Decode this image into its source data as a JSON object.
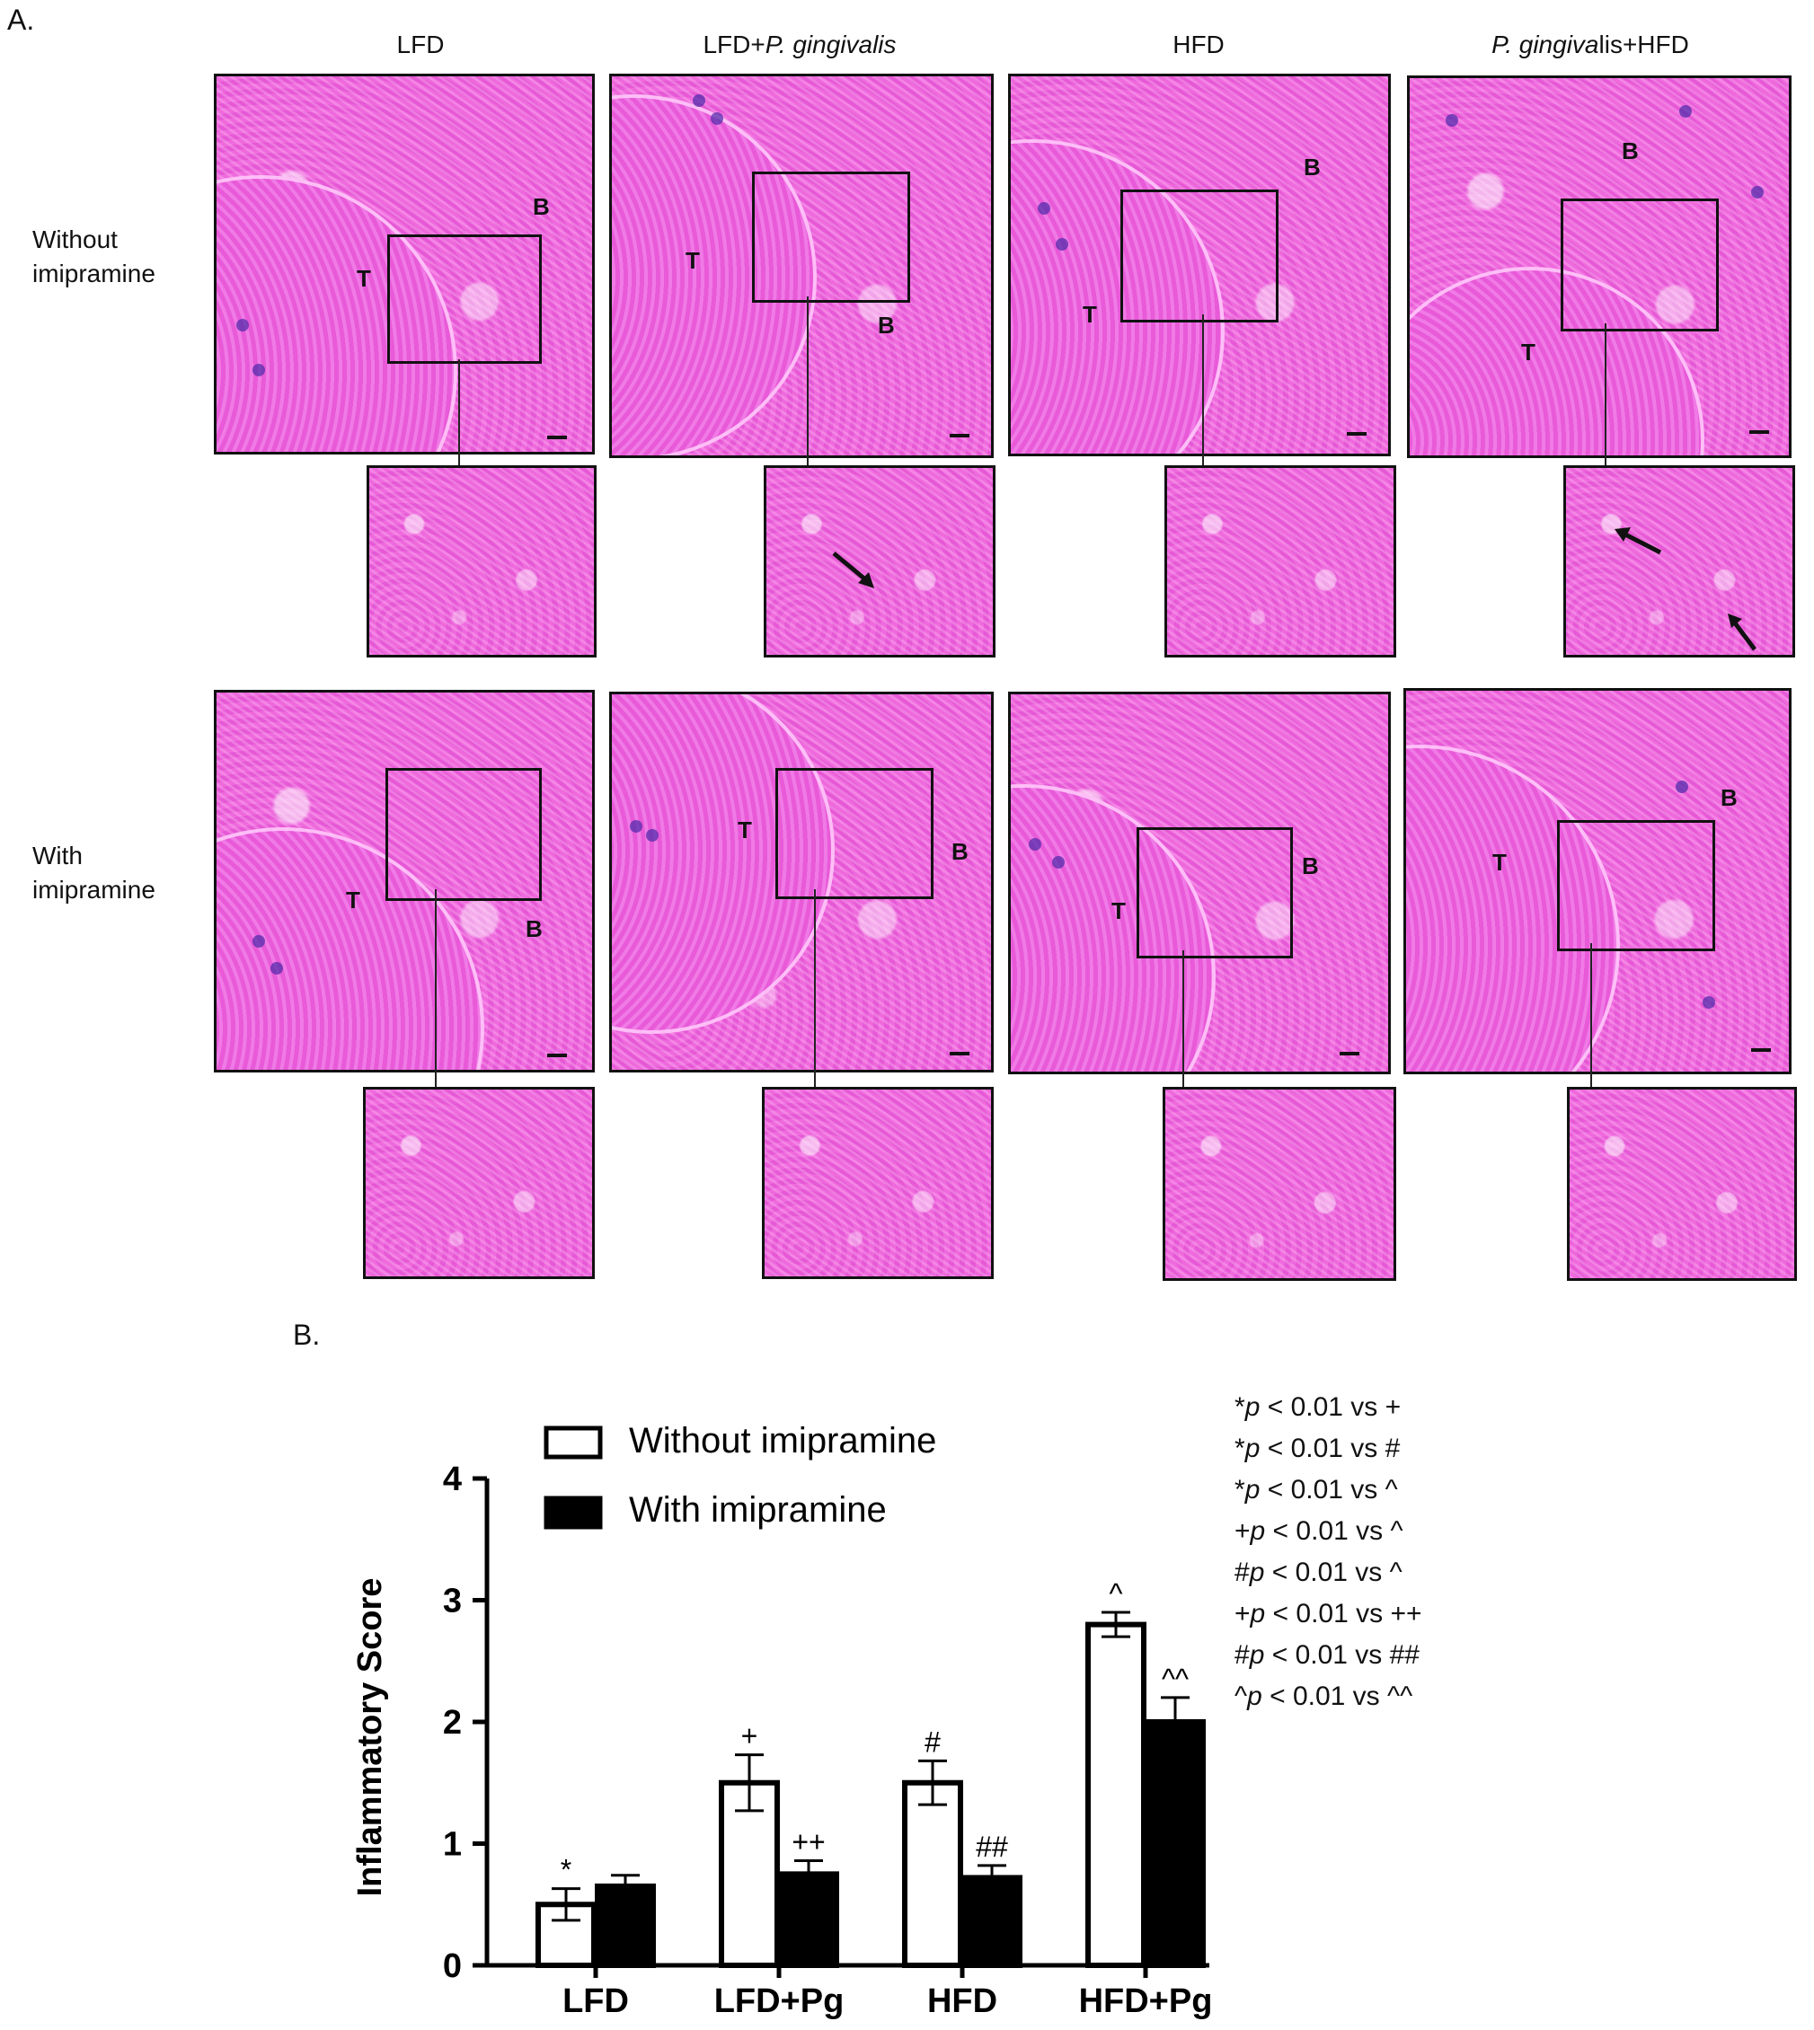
{
  "figure": {
    "panel_a_label": "A.",
    "panel_b_label": "B.",
    "column_titles": [
      {
        "plain_before": "LFD",
        "italic": "",
        "plain_after": ""
      },
      {
        "plain_before": "LFD+",
        "italic": "P. gingivalis",
        "plain_after": ""
      },
      {
        "plain_before": "HFD",
        "italic": "",
        "plain_after": ""
      },
      {
        "plain_before": "",
        "italic": "P. gingiva",
        "plain_after": "lis+HFD"
      }
    ],
    "row_labels": [
      "Without\nimipramine",
      "With\nimipramine"
    ],
    "tissue_labels": {
      "tooth": "T",
      "bone": "B"
    }
  },
  "chart_data": {
    "type": "bar",
    "categories": [
      "LFD",
      "LFD+Pg",
      "HFD",
      "HFD+Pg"
    ],
    "series": [
      {
        "name": "Without imipramine",
        "values": [
          0.5,
          1.5,
          1.5,
          2.8
        ],
        "errors": [
          0.13,
          0.23,
          0.18,
          0.1
        ],
        "fill": "#ffffff"
      },
      {
        "name": "With imipramine",
        "values": [
          0.65,
          0.75,
          0.72,
          2.0
        ],
        "errors": [
          0.09,
          0.11,
          0.1,
          0.2
        ],
        "fill": "#000000"
      }
    ],
    "bar_annotations": [
      [
        "*",
        ""
      ],
      [
        "+",
        "++"
      ],
      [
        "#",
        "##"
      ],
      [
        "^",
        "^^"
      ]
    ],
    "ylabel": "Inflammatory Score",
    "xlabel": "",
    "ylim": [
      0,
      4
    ],
    "yticks": [
      0,
      1,
      2,
      3,
      4
    ],
    "grid": false,
    "legend_position": "top-left",
    "stats_notes": [
      {
        "prefix": "*",
        "p": "p",
        "text": " < 0.01 vs +"
      },
      {
        "prefix": "*",
        "p": "p",
        "text": " < 0.01 vs #"
      },
      {
        "prefix": "*",
        "p": "p",
        "text": " < 0.01 vs ^"
      },
      {
        "prefix": "+",
        "p": "p",
        "text": " < 0.01 vs ^"
      },
      {
        "prefix": "#",
        "p": "p",
        "text": " < 0.01 vs ^"
      },
      {
        "prefix": "+",
        "p": "p",
        "text": " < 0.01 vs ++"
      },
      {
        "prefix": "#",
        "p": "p",
        "text": " < 0.01 vs ##"
      },
      {
        "prefix": "^",
        "p": "p",
        "text": " < 0.01 vs ^^"
      }
    ]
  }
}
